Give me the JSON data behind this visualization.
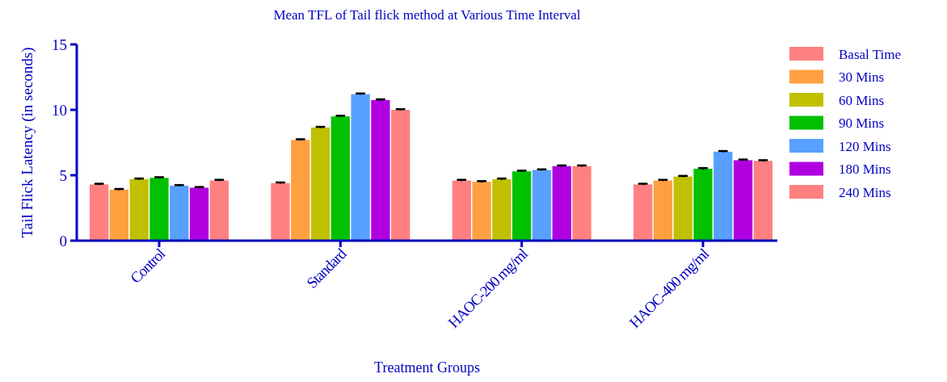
{
  "chart_data": {
    "type": "bar",
    "title": "Mean TFL of Tail flick method at Various Time Interval",
    "xlabel": "Treatment Groups",
    "ylabel": "Tail Flick Latency (in seconds)",
    "categories": [
      "Control",
      "Standard",
      "HAOC-200 mg/ml",
      "HAOC-400 mg/ml"
    ],
    "series": [
      {
        "name": "Basal Time",
        "color": "#ff8080",
        "values": [
          4.3,
          4.4,
          4.6,
          4.3
        ],
        "errors": [
          0.05,
          0.05,
          0.05,
          0.05
        ]
      },
      {
        "name": "30 Mins",
        "color": "#ffa040",
        "values": [
          3.9,
          7.7,
          4.5,
          4.6
        ],
        "errors": [
          0.05,
          0.05,
          0.05,
          0.05
        ]
      },
      {
        "name": "60 Mins",
        "color": "#c0c000",
        "values": [
          4.7,
          8.65,
          4.7,
          4.9
        ],
        "errors": [
          0.05,
          0.05,
          0.05,
          0.05
        ]
      },
      {
        "name": "90 Mins",
        "color": "#00c000",
        "values": [
          4.8,
          9.5,
          5.3,
          5.5
        ],
        "errors": [
          0.05,
          0.05,
          0.05,
          0.05
        ]
      },
      {
        "name": "120 Mins",
        "color": "#58a0ff",
        "values": [
          4.2,
          11.2,
          5.4,
          6.8
        ],
        "errors": [
          0.05,
          0.05,
          0.05,
          0.05
        ]
      },
      {
        "name": "180 Mins",
        "color": "#b000e0",
        "values": [
          4.05,
          10.75,
          5.7,
          6.15
        ],
        "errors": [
          0.05,
          0.05,
          0.05,
          0.05
        ]
      },
      {
        "name": "240 Mins",
        "color": "#ff8080",
        "values": [
          4.6,
          10.0,
          5.7,
          6.1
        ],
        "errors": [
          0.05,
          0.05,
          0.05,
          0.05
        ]
      }
    ],
    "ylim": [
      0,
      15
    ],
    "yticks": [
      0,
      5,
      10,
      15
    ],
    "legend": "right"
  }
}
